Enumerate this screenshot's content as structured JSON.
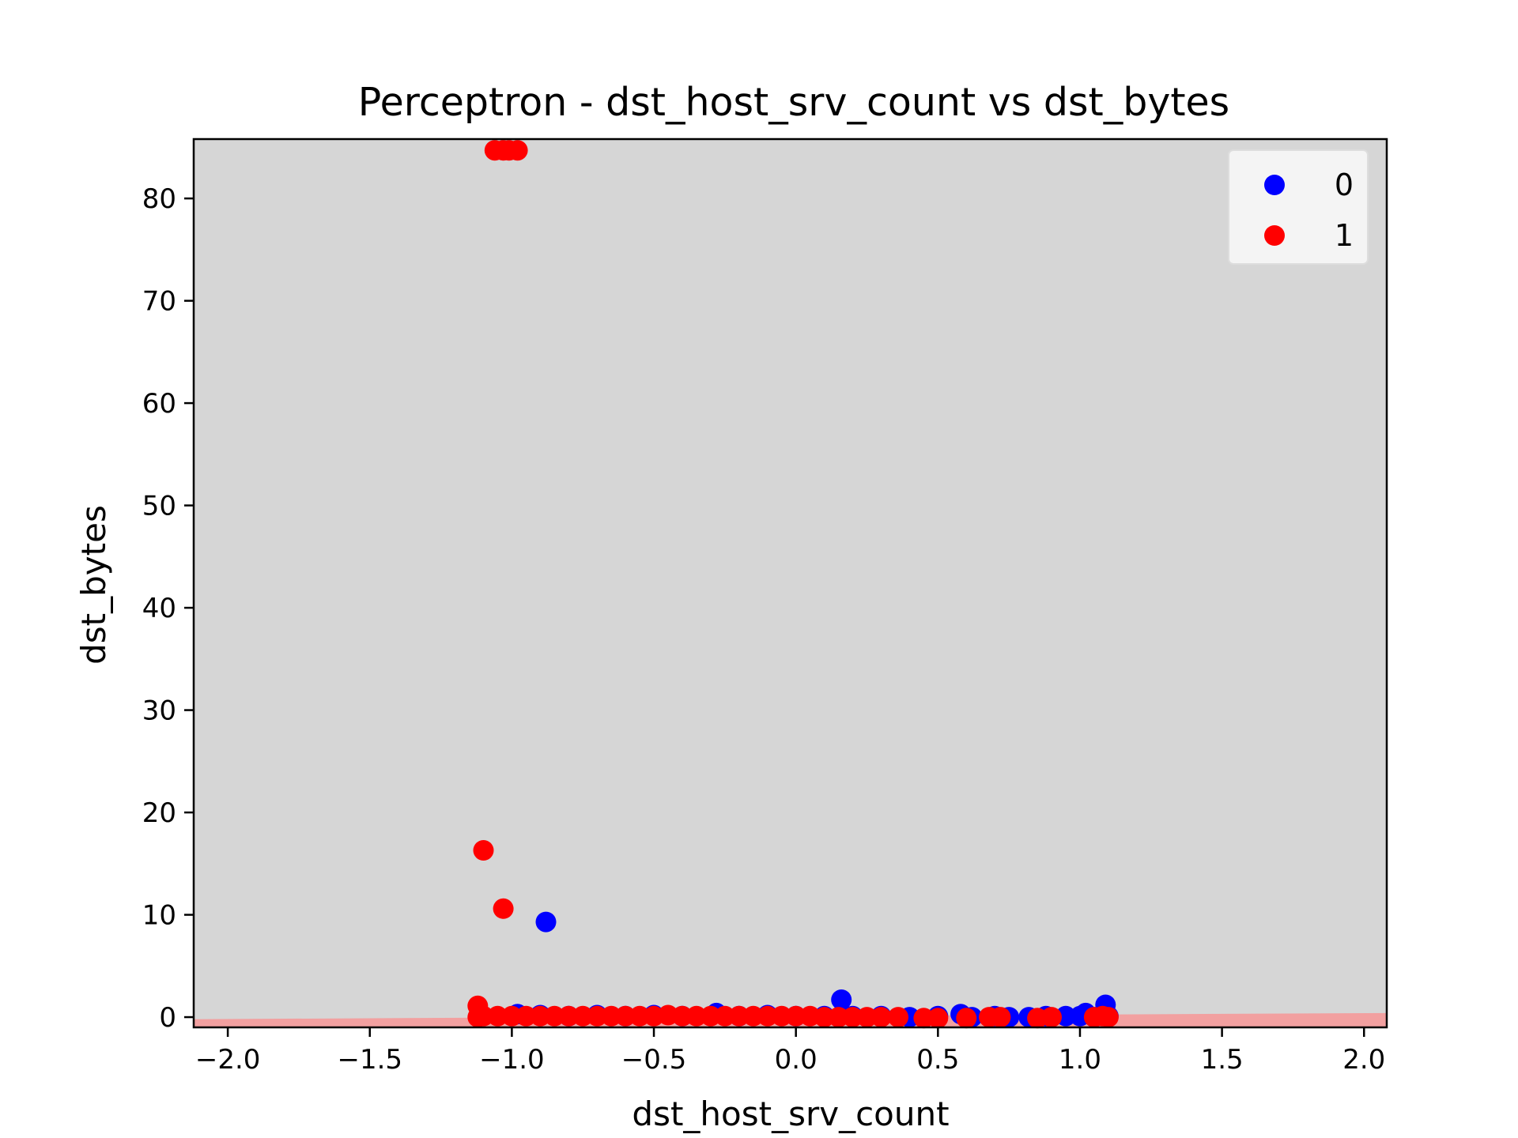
{
  "chart_data": {
    "type": "scatter",
    "title": "Perceptron - dst_host_srv_count vs dst_bytes",
    "xlabel": "dst_host_srv_count",
    "ylabel": "dst_bytes",
    "xlim": [
      -2.12,
      2.08
    ],
    "ylim": [
      -1.0,
      85.8
    ],
    "x_ticks": [
      -2.0,
      -1.5,
      -1.0,
      -0.5,
      0.0,
      0.5,
      1.0,
      1.5,
      2.0
    ],
    "x_tick_labels": [
      "−2.0",
      "−1.5",
      "−1.0",
      "−0.5",
      "0.0",
      "0.5",
      "1.0",
      "1.5",
      "2.0"
    ],
    "y_ticks": [
      0,
      10,
      20,
      30,
      40,
      50,
      60,
      70,
      80
    ],
    "y_tick_labels": [
      "0",
      "10",
      "20",
      "30",
      "40",
      "50",
      "60",
      "70",
      "80"
    ],
    "grid": false,
    "legend": "top-right",
    "background_color": "#d6d6d6",
    "decision_region": {
      "color": "#f2a0a0",
      "boundary": [
        [
          -2.12,
          -0.2
        ],
        [
          2.08,
          0.4
        ]
      ]
    },
    "series": [
      {
        "name": "0",
        "color": "#0000ff",
        "points": [
          [
            -0.98,
            0.3
          ],
          [
            -0.9,
            0.2
          ],
          [
            -0.88,
            9.3
          ],
          [
            -0.8,
            0.1
          ],
          [
            -0.7,
            0.2
          ],
          [
            -0.6,
            0.1
          ],
          [
            -0.5,
            0.2
          ],
          [
            -0.4,
            0.1
          ],
          [
            -0.28,
            0.4
          ],
          [
            -0.2,
            0.1
          ],
          [
            -0.1,
            0.2
          ],
          [
            0.0,
            0.1
          ],
          [
            0.1,
            0.1
          ],
          [
            0.16,
            1.7
          ],
          [
            0.2,
            0.1
          ],
          [
            0.3,
            0.1
          ],
          [
            0.4,
            0.0
          ],
          [
            0.5,
            0.1
          ],
          [
            0.58,
            0.3
          ],
          [
            0.62,
            0.0
          ],
          [
            0.7,
            0.1
          ],
          [
            0.75,
            0.0
          ],
          [
            0.82,
            0.0
          ],
          [
            0.88,
            0.1
          ],
          [
            0.95,
            0.1
          ],
          [
            1.0,
            0.1
          ],
          [
            1.02,
            0.4
          ],
          [
            1.05,
            0.0
          ],
          [
            1.09,
            1.2
          ],
          [
            1.1,
            0.1
          ]
        ]
      },
      {
        "name": "1",
        "color": "#ff0000",
        "points": [
          [
            -1.06,
            84.7
          ],
          [
            -1.03,
            84.7
          ],
          [
            -1.01,
            84.7
          ],
          [
            -0.98,
            84.7
          ],
          [
            -1.1,
            16.3
          ],
          [
            -1.03,
            10.6
          ],
          [
            -1.12,
            1.1
          ],
          [
            -1.12,
            0.0
          ],
          [
            -1.1,
            0.1
          ],
          [
            -1.05,
            0.1
          ],
          [
            -1.0,
            0.1
          ],
          [
            -0.95,
            0.1
          ],
          [
            -0.9,
            0.1
          ],
          [
            -0.85,
            0.1
          ],
          [
            -0.8,
            0.1
          ],
          [
            -0.75,
            0.1
          ],
          [
            -0.7,
            0.1
          ],
          [
            -0.65,
            0.1
          ],
          [
            -0.6,
            0.1
          ],
          [
            -0.55,
            0.1
          ],
          [
            -0.5,
            0.1
          ],
          [
            -0.45,
            0.2
          ],
          [
            -0.4,
            0.1
          ],
          [
            -0.35,
            0.1
          ],
          [
            -0.3,
            0.1
          ],
          [
            -0.25,
            0.1
          ],
          [
            -0.2,
            0.1
          ],
          [
            -0.15,
            0.1
          ],
          [
            -0.1,
            0.1
          ],
          [
            -0.05,
            0.1
          ],
          [
            0.0,
            0.1
          ],
          [
            0.05,
            0.1
          ],
          [
            0.1,
            0.0
          ],
          [
            0.15,
            0.0
          ],
          [
            0.2,
            0.0
          ],
          [
            0.25,
            0.0
          ],
          [
            0.3,
            0.0
          ],
          [
            0.36,
            0.0
          ],
          [
            0.45,
            -0.1
          ],
          [
            0.5,
            -0.1
          ],
          [
            0.6,
            -0.1
          ],
          [
            0.68,
            0.0
          ],
          [
            0.72,
            0.0
          ],
          [
            0.85,
            -0.1
          ],
          [
            0.9,
            0.0
          ],
          [
            1.05,
            0.0
          ],
          [
            1.08,
            0.1
          ],
          [
            1.1,
            0.0
          ]
        ]
      }
    ]
  }
}
